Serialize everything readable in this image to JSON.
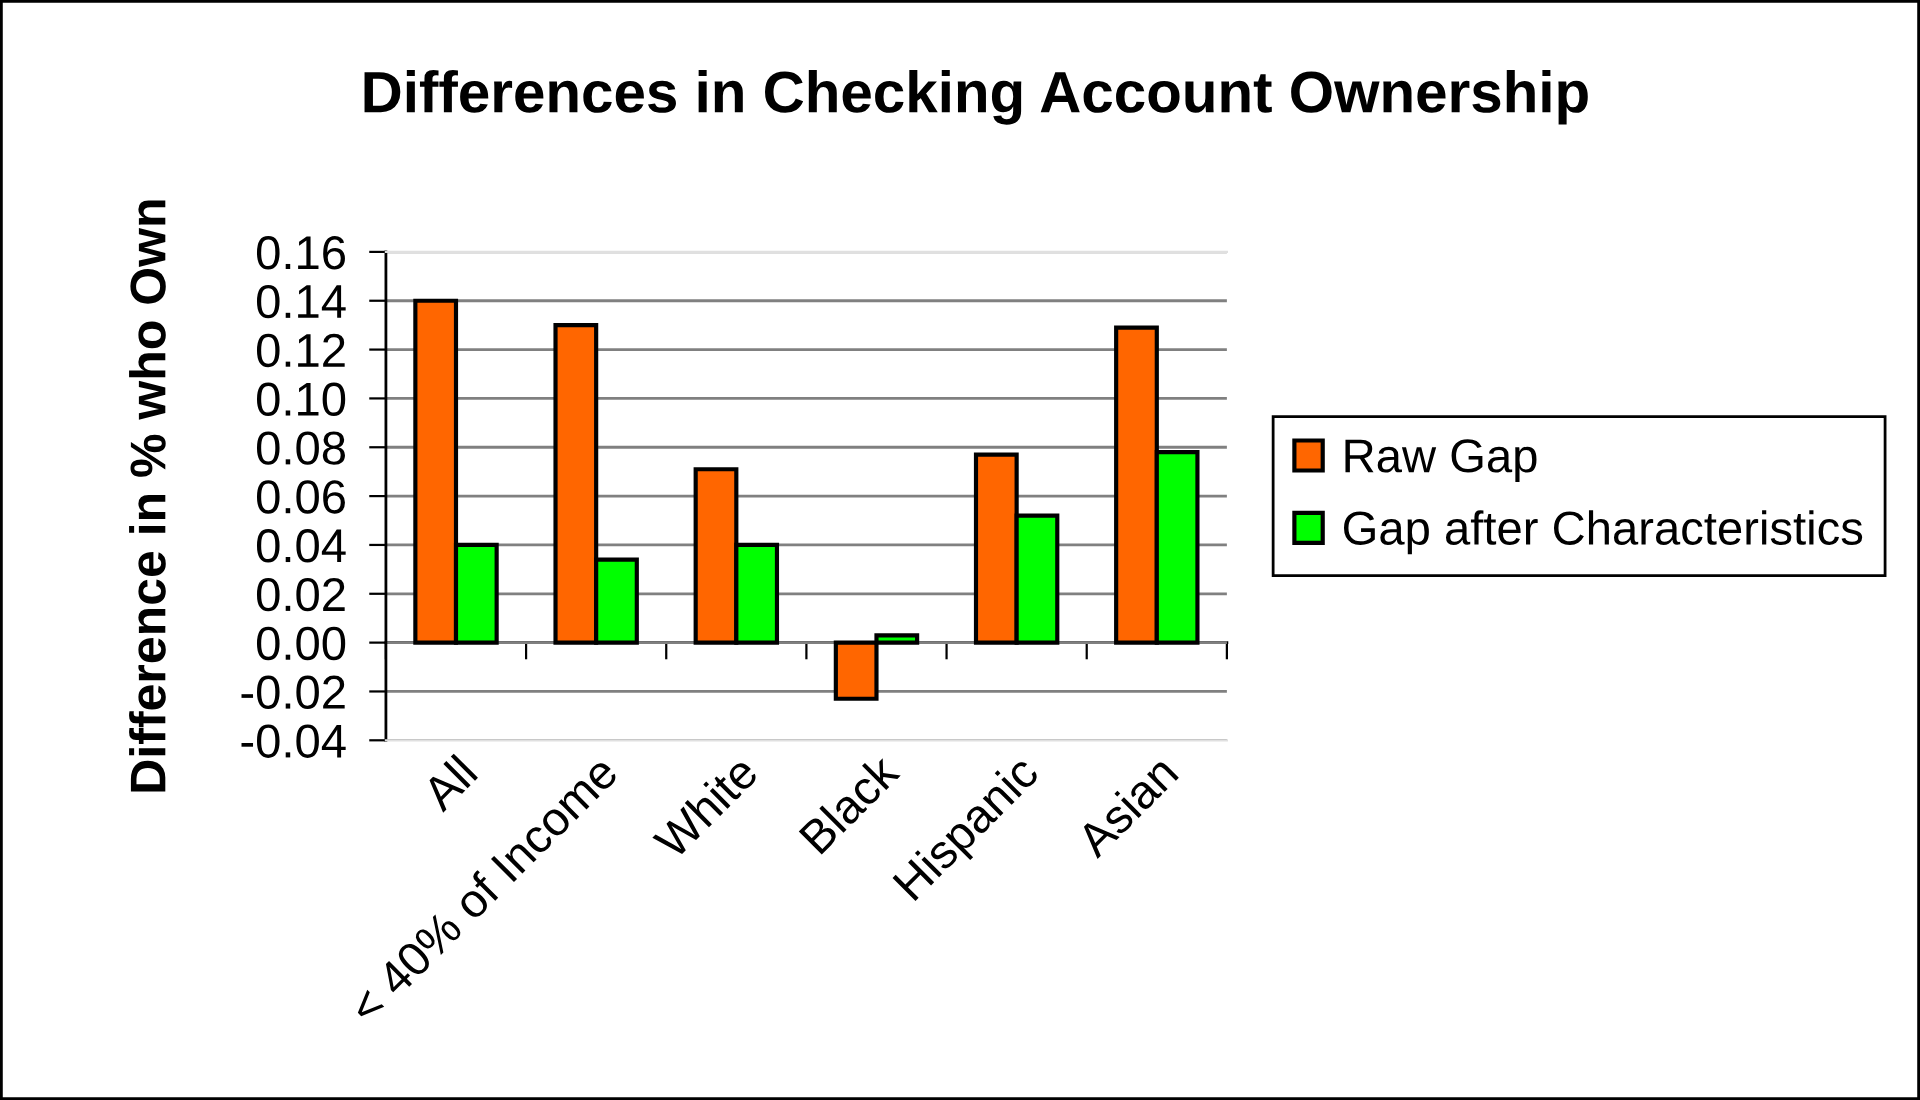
{
  "chart_data": {
    "type": "bar",
    "title": "Differences in Checking Account Ownership",
    "ylabel": "Difference in % who Own",
    "categories": [
      "All",
      "< 40% of Income",
      "White",
      "Black",
      "Hispanic",
      "Asian"
    ],
    "series": [
      {
        "name": "Raw Gap",
        "color": "#ff6600",
        "values": [
          0.14,
          0.13,
          0.071,
          -0.023,
          0.077,
          0.129
        ]
      },
      {
        "name": "Gap after Characteristics",
        "color": "#00ff00",
        "values": [
          0.04,
          0.034,
          0.04,
          0.003,
          0.052,
          0.078
        ]
      }
    ],
    "ylim": [
      -0.04,
      0.16
    ],
    "yticks": [
      {
        "value": -0.04,
        "label": "-0.04"
      },
      {
        "value": -0.02,
        "label": "-0.02"
      },
      {
        "value": 0,
        "label": "0.00"
      },
      {
        "value": 0.02,
        "label": "0.02"
      },
      {
        "value": 0.04,
        "label": "0.04"
      },
      {
        "value": 0.06,
        "label": "0.06"
      },
      {
        "value": 0.08,
        "label": "0.08"
      },
      {
        "value": 0.1,
        "label": "0.10"
      },
      {
        "value": 0.12,
        "label": "0.12"
      },
      {
        "value": 0.14,
        "label": "0.14"
      },
      {
        "value": 0.16,
        "label": "0.16"
      }
    ],
    "grid": "y",
    "legend": "right"
  }
}
